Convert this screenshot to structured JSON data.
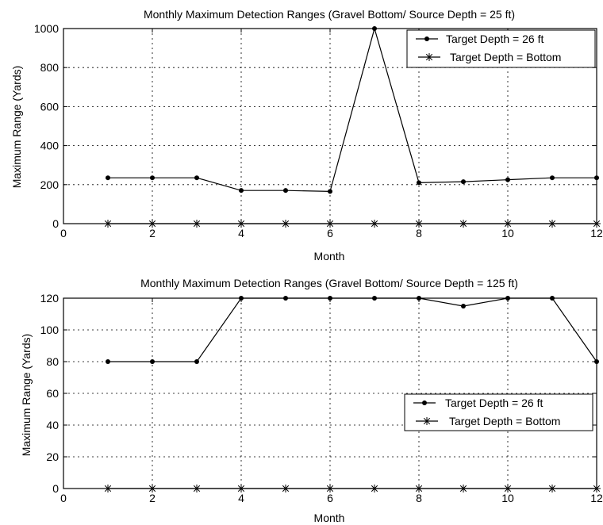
{
  "chart_data": [
    {
      "type": "line",
      "title": "Monthly Maximum Detection Ranges (Gravel Bottom/ Source Depth = 25 ft)",
      "xlabel": "Month",
      "ylabel": "Maximum Range (Yards)",
      "xlim": [
        0,
        12
      ],
      "ylim": [
        0,
        1000
      ],
      "xticks": [
        0,
        2,
        4,
        6,
        8,
        10,
        12
      ],
      "yticks": [
        0,
        200,
        400,
        600,
        800,
        1000
      ],
      "grid": true,
      "legend_position": "top-right",
      "x": [
        1,
        2,
        3,
        4,
        5,
        6,
        7,
        8,
        9,
        10,
        11,
        12
      ],
      "series": [
        {
          "name": "Target Depth = 26 ft",
          "marker": "dot",
          "values": [
            235,
            235,
            235,
            170,
            170,
            165,
            1000,
            210,
            215,
            225,
            235,
            235
          ]
        },
        {
          "name": "Target Depth = Bottom",
          "marker": "star",
          "values": [
            0,
            0,
            0,
            0,
            0,
            0,
            0,
            0,
            0,
            0,
            0,
            0
          ]
        }
      ]
    },
    {
      "type": "line",
      "title": "Monthly Maximum Detection Ranges (Gravel Bottom/ Source Depth = 125 ft)",
      "xlabel": "Month",
      "ylabel": "Maximum Range (Yards)",
      "xlim": [
        0,
        12
      ],
      "ylim": [
        0,
        120
      ],
      "xticks": [
        0,
        2,
        4,
        6,
        8,
        10,
        12
      ],
      "yticks": [
        0,
        20,
        40,
        60,
        80,
        100,
        120
      ],
      "grid": true,
      "legend_position": "center-right",
      "x": [
        1,
        2,
        3,
        4,
        5,
        6,
        7,
        8,
        9,
        10,
        11,
        12
      ],
      "series": [
        {
          "name": "Target Depth = 26 ft",
          "marker": "dot",
          "values": [
            80,
            80,
            80,
            120,
            120,
            120,
            120,
            120,
            115,
            120,
            120,
            80
          ]
        },
        {
          "name": "Target Depth = Bottom",
          "marker": "star",
          "values": [
            0,
            0,
            0,
            0,
            0,
            0,
            0,
            0,
            0,
            0,
            0,
            0
          ]
        }
      ]
    }
  ]
}
